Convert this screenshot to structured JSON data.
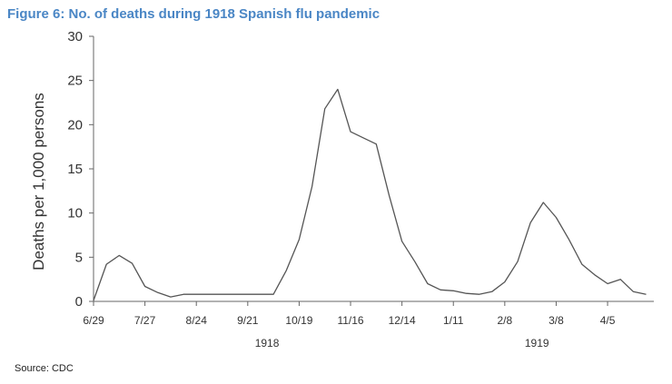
{
  "title": "Figure 6: No. of deaths during 1918 Spanish flu pandemic",
  "source": "Source: CDC",
  "colors": {
    "title": "#4a86c5",
    "line": "#555555",
    "axis": "#666666"
  },
  "chart_data": {
    "type": "line",
    "title": "Figure 6: No. of deaths during 1918 Spanish flu pandemic",
    "xlabel": "",
    "ylabel": "Deaths per 1,000 persons",
    "ylim": [
      0,
      30
    ],
    "yticks": [
      0,
      5,
      10,
      15,
      20,
      25,
      30
    ],
    "grid": false,
    "x_tick_labels": [
      "6/29",
      "7/27",
      "8/24",
      "9/21",
      "10/19",
      "11/16",
      "12/14",
      "1/11",
      "2/8",
      "3/8",
      "4/5"
    ],
    "x_tick_weeks": [
      0,
      4,
      8,
      12,
      16,
      20,
      24,
      28,
      32,
      36,
      40
    ],
    "year_labels": [
      {
        "label": "1918",
        "week": 13.5
      },
      {
        "label": "1919",
        "week": 34.5
      }
    ],
    "series": [
      {
        "x_week": [
          0,
          1,
          2,
          3,
          4,
          5,
          6,
          7,
          8,
          9,
          10,
          11,
          12,
          13,
          14,
          15,
          16,
          17,
          18,
          19,
          20,
          21,
          22,
          23,
          24,
          25,
          26,
          27,
          28,
          29,
          30,
          31,
          32,
          33,
          34,
          35,
          36,
          37,
          38,
          39,
          40,
          41,
          42,
          43
        ],
        "values": [
          0.1,
          4.2,
          5.2,
          4.3,
          1.7,
          1.0,
          0.5,
          0.8,
          0.8,
          0.8,
          0.8,
          0.8,
          0.8,
          0.8,
          0.8,
          3.5,
          7.0,
          13.0,
          21.8,
          24.0,
          19.2,
          18.5,
          17.8,
          12.0,
          6.8,
          4.5,
          2.0,
          1.3,
          1.2,
          0.9,
          0.8,
          1.1,
          2.2,
          4.5,
          8.9,
          11.2,
          9.5,
          7.0,
          4.2,
          3.0,
          2.0,
          2.5,
          1.1,
          0.8
        ]
      }
    ]
  }
}
